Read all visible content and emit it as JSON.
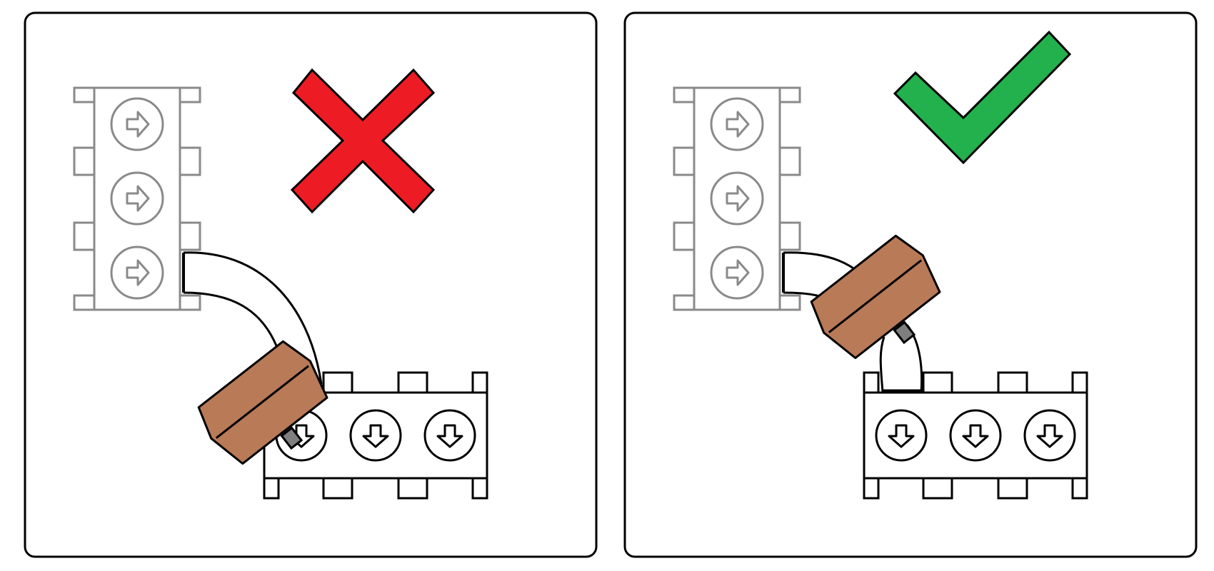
{
  "colors": {
    "outline": "#000000",
    "grey_module": "#8a8a8a",
    "wrong_mark": "#ed1c24",
    "right_mark": "#22b14c",
    "block_fill": "#b97a57",
    "tab_fill": "#7f7f7f",
    "background": "#ffffff"
  },
  "panels": [
    {
      "id": "wrong",
      "verdict": "incorrect",
      "mark_icon": "cross-icon",
      "hub_rotation_deg": -38,
      "description_icons": [
        "horizontal-module-icon",
        "vertical-module-icon",
        "bent-pipe-icon",
        "brown-block-icon"
      ]
    },
    {
      "id": "right",
      "verdict": "correct",
      "mark_icon": "check-icon",
      "hub_rotation_deg": -38,
      "description_icons": [
        "horizontal-module-icon",
        "vertical-module-icon",
        "bent-pipe-icon",
        "brown-block-icon"
      ]
    }
  ]
}
